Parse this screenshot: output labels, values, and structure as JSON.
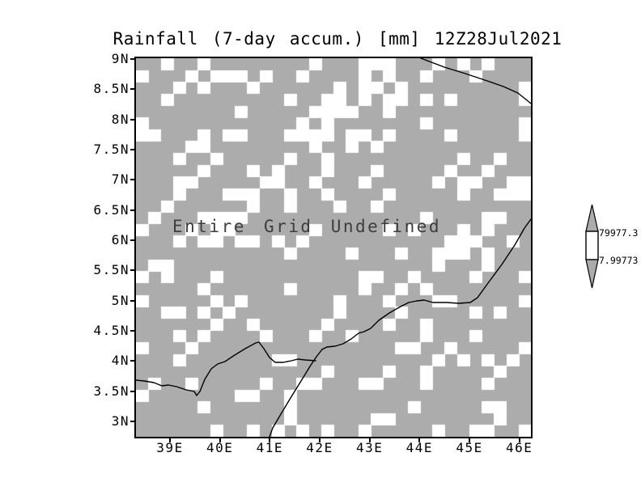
{
  "title": "Rainfall (7-day accum.) [mm] 12Z28Jul2021",
  "annotation": "Entire Grid Undefined",
  "axes": {
    "y_tick_labels": [
      "9N",
      "8.5N",
      "8N",
      "7.5N",
      "7N",
      "6.5N",
      "6N",
      "5.5N",
      "5N",
      "4.5N",
      "4N",
      "3.5N",
      "3N"
    ],
    "x_tick_labels": [
      "39E",
      "40E",
      "41E",
      "42E",
      "43E",
      "44E",
      "45E",
      "46E"
    ]
  },
  "colorbar": {
    "top_label": "79977.3",
    "bottom_label": "7.99773",
    "triangle_color": "#acacac",
    "band_color": "#ffffff",
    "outline_color": "#000000"
  },
  "colors": {
    "background": "#ffffff",
    "grid_fill": "#acacac",
    "speckle": "#ffffff",
    "map_line": "#000000",
    "text": "#000000",
    "annotation_text": "#3d3d3d"
  },
  "map_lines": [
    {
      "name": "gulf-of-aden-coast",
      "points": [
        [
          352,
          0
        ],
        [
          381,
          11
        ],
        [
          407,
          19
        ],
        [
          434,
          28
        ],
        [
          454,
          35
        ],
        [
          472,
          43
        ],
        [
          488,
          56
        ]
      ]
    },
    {
      "name": "indian-ocean-coast",
      "points": [
        [
          488,
          199
        ],
        [
          480,
          210
        ],
        [
          468,
          231
        ],
        [
          452,
          255
        ],
        [
          435,
          278
        ],
        [
          422,
          296
        ],
        [
          413,
          302
        ],
        [
          399,
          303
        ],
        [
          384,
          302
        ],
        [
          367,
          302
        ],
        [
          356,
          299
        ],
        [
          347,
          300
        ],
        [
          337,
          302
        ],
        [
          327,
          307
        ],
        [
          313,
          315
        ],
        [
          300,
          324
        ],
        [
          290,
          334
        ],
        [
          282,
          338
        ],
        [
          275,
          340
        ],
        [
          266,
          347
        ],
        [
          256,
          353
        ],
        [
          246,
          356
        ],
        [
          236,
          357
        ],
        [
          230,
          360
        ]
      ]
    },
    {
      "name": "border-line-south",
      "points": [
        [
          230,
          360
        ],
        [
          223,
          369
        ],
        [
          215,
          381
        ],
        [
          204,
          399
        ],
        [
          191,
          420
        ],
        [
          179,
          440
        ],
        [
          169,
          457
        ],
        [
          165,
          468
        ]
      ]
    },
    {
      "name": "border-line-west",
      "points": [
        [
          0,
          398
        ],
        [
          10,
          399
        ],
        [
          22,
          401
        ],
        [
          32,
          405
        ],
        [
          40,
          404
        ],
        [
          50,
          406
        ],
        [
          62,
          410
        ],
        [
          72,
          412
        ],
        [
          75,
          417
        ],
        [
          79,
          412
        ],
        [
          85,
          397
        ],
        [
          93,
          384
        ],
        [
          101,
          378
        ],
        [
          110,
          375
        ],
        [
          122,
          367
        ],
        [
          135,
          359
        ],
        [
          148,
          352
        ],
        [
          152,
          351
        ],
        [
          158,
          359
        ],
        [
          165,
          370
        ],
        [
          172,
          376
        ],
        [
          182,
          376
        ],
        [
          192,
          374
        ],
        [
          200,
          372
        ],
        [
          209,
          373
        ],
        [
          222,
          374
        ]
      ]
    }
  ],
  "chart_data": {
    "type": "heatmap",
    "title": "Rainfall (7-day accum.) [mm] 12Z28Jul2021",
    "variable": "Rainfall (7-day accum.) [mm]",
    "valid_time": "12Z28Jul2021",
    "x_tick_labels": [
      "39E",
      "40E",
      "41E",
      "42E",
      "43E",
      "44E",
      "45E",
      "46E"
    ],
    "y_tick_labels": [
      "9N",
      "8.5N",
      "8N",
      "7.5N",
      "7N",
      "6.5N",
      "6N",
      "5.5N",
      "5N",
      "4.5N",
      "4N",
      "3.5N",
      "3N"
    ],
    "x_axis": "longitude (degrees East)",
    "y_axis": "latitude (degrees North)",
    "x_range_deg": [
      38.32,
      46.33
    ],
    "y_range_deg": [
      2.73,
      9.0
    ],
    "values": "undefined - no data plotted (Entire Grid Undefined)",
    "annotation": "Entire Grid Undefined",
    "grid": false,
    "legend_position": "right",
    "colorbar_levels": [
      7.99773,
      79977.3
    ]
  }
}
